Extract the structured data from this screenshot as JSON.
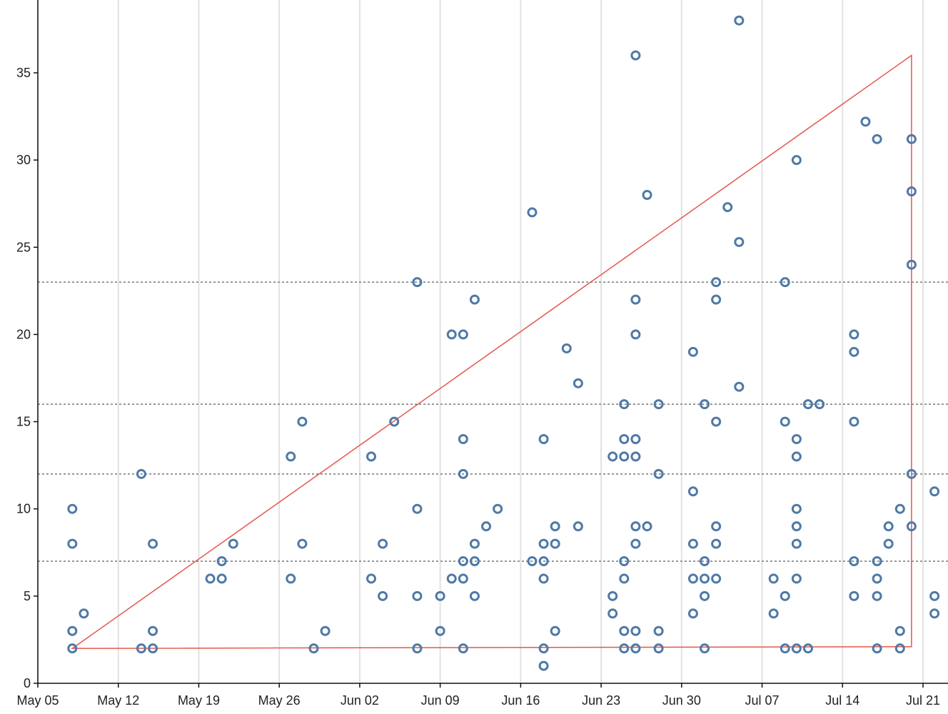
{
  "chart_data": {
    "type": "scatter",
    "title": "",
    "xlabel": "",
    "ylabel": "",
    "x_axis": {
      "scale": "time",
      "range": [
        "2024-05-05",
        "2024-07-22"
      ],
      "tick_values": [
        "2024-05-05",
        "2024-05-12",
        "2024-05-19",
        "2024-05-26",
        "2024-06-02",
        "2024-06-09",
        "2024-06-16",
        "2024-06-23",
        "2024-06-30",
        "2024-07-07",
        "2024-07-14",
        "2024-07-21"
      ],
      "tick_labels": [
        "May 05",
        "May 12",
        "May 19",
        "May 26",
        "Jun 02",
        "Jun 09",
        "Jun 16",
        "Jun 23",
        "Jun 30",
        "Jul 07",
        "Jul 14",
        "Jul 21"
      ]
    },
    "y_axis": {
      "range": [
        0,
        39
      ],
      "tick_values": [
        0,
        5,
        10,
        15,
        20,
        25,
        30,
        35
      ],
      "tick_labels": [
        "0",
        "5",
        "10",
        "15",
        "20",
        "25",
        "30",
        "35"
      ]
    },
    "vertical_grid": true,
    "horizontal_grid": false,
    "reference_lines": [
      7,
      12,
      16,
      23
    ],
    "colors": {
      "points": "#4e79a7",
      "polygon": "#e4574c",
      "reference_lines": "#777777",
      "grid": "#e2e2e2",
      "axis": "#111111"
    },
    "polygon": [
      {
        "x": "2024-05-08",
        "y": 2
      },
      {
        "x": "2024-07-20",
        "y": 36
      },
      {
        "x": "2024-07-20",
        "y": 2.1
      }
    ],
    "series": [
      {
        "points": [
          {
            "x": "2024-05-08",
            "y": 10
          },
          {
            "x": "2024-05-08",
            "y": 8
          },
          {
            "x": "2024-05-08",
            "y": 3
          },
          {
            "x": "2024-05-08",
            "y": 2
          },
          {
            "x": "2024-05-09",
            "y": 4
          },
          {
            "x": "2024-05-14",
            "y": 12
          },
          {
            "x": "2024-05-14",
            "y": 2
          },
          {
            "x": "2024-05-15",
            "y": 8
          },
          {
            "x": "2024-05-15",
            "y": 3
          },
          {
            "x": "2024-05-15",
            "y": 2
          },
          {
            "x": "2024-05-20",
            "y": 6
          },
          {
            "x": "2024-05-21",
            "y": 7
          },
          {
            "x": "2024-05-21",
            "y": 6
          },
          {
            "x": "2024-05-22",
            "y": 8
          },
          {
            "x": "2024-05-27",
            "y": 13
          },
          {
            "x": "2024-05-27",
            "y": 6
          },
          {
            "x": "2024-05-28",
            "y": 15
          },
          {
            "x": "2024-05-28",
            "y": 8
          },
          {
            "x": "2024-05-29",
            "y": 2
          },
          {
            "x": "2024-05-30",
            "y": 3
          },
          {
            "x": "2024-06-03",
            "y": 13
          },
          {
            "x": "2024-06-03",
            "y": 6
          },
          {
            "x": "2024-06-04",
            "y": 8
          },
          {
            "x": "2024-06-04",
            "y": 5
          },
          {
            "x": "2024-06-05",
            "y": 15
          },
          {
            "x": "2024-06-07",
            "y": 23
          },
          {
            "x": "2024-06-07",
            "y": 10
          },
          {
            "x": "2024-06-07",
            "y": 5
          },
          {
            "x": "2024-06-07",
            "y": 2
          },
          {
            "x": "2024-06-09",
            "y": 5
          },
          {
            "x": "2024-06-09",
            "y": 3
          },
          {
            "x": "2024-06-10",
            "y": 20
          },
          {
            "x": "2024-06-10",
            "y": 6
          },
          {
            "x": "2024-06-11",
            "y": 20
          },
          {
            "x": "2024-06-11",
            "y": 14
          },
          {
            "x": "2024-06-11",
            "y": 12
          },
          {
            "x": "2024-06-11",
            "y": 7
          },
          {
            "x": "2024-06-11",
            "y": 6
          },
          {
            "x": "2024-06-11",
            "y": 2
          },
          {
            "x": "2024-06-12",
            "y": 22
          },
          {
            "x": "2024-06-12",
            "y": 8
          },
          {
            "x": "2024-06-12",
            "y": 7
          },
          {
            "x": "2024-06-12",
            "y": 5
          },
          {
            "x": "2024-06-13",
            "y": 9
          },
          {
            "x": "2024-06-14",
            "y": 10
          },
          {
            "x": "2024-06-17",
            "y": 27
          },
          {
            "x": "2024-06-17",
            "y": 7
          },
          {
            "x": "2024-06-18",
            "y": 14
          },
          {
            "x": "2024-06-18",
            "y": 8
          },
          {
            "x": "2024-06-18",
            "y": 7
          },
          {
            "x": "2024-06-18",
            "y": 6
          },
          {
            "x": "2024-06-18",
            "y": 2
          },
          {
            "x": "2024-06-18",
            "y": 1
          },
          {
            "x": "2024-06-19",
            "y": 9
          },
          {
            "x": "2024-06-19",
            "y": 8
          },
          {
            "x": "2024-06-19",
            "y": 3
          },
          {
            "x": "2024-06-20",
            "y": 19.2
          },
          {
            "x": "2024-06-21",
            "y": 17.2
          },
          {
            "x": "2024-06-21",
            "y": 9
          },
          {
            "x": "2024-06-24",
            "y": 13
          },
          {
            "x": "2024-06-24",
            "y": 5
          },
          {
            "x": "2024-06-24",
            "y": 4
          },
          {
            "x": "2024-06-25",
            "y": 16
          },
          {
            "x": "2024-06-25",
            "y": 14
          },
          {
            "x": "2024-06-25",
            "y": 13
          },
          {
            "x": "2024-06-25",
            "y": 7
          },
          {
            "x": "2024-06-25",
            "y": 6
          },
          {
            "x": "2024-06-25",
            "y": 3
          },
          {
            "x": "2024-06-25",
            "y": 2
          },
          {
            "x": "2024-06-26",
            "y": 36
          },
          {
            "x": "2024-06-26",
            "y": 22
          },
          {
            "x": "2024-06-26",
            "y": 20
          },
          {
            "x": "2024-06-26",
            "y": 14
          },
          {
            "x": "2024-06-26",
            "y": 13
          },
          {
            "x": "2024-06-26",
            "y": 9
          },
          {
            "x": "2024-06-26",
            "y": 8
          },
          {
            "x": "2024-06-26",
            "y": 3
          },
          {
            "x": "2024-06-26",
            "y": 2
          },
          {
            "x": "2024-06-27",
            "y": 28
          },
          {
            "x": "2024-06-27",
            "y": 9
          },
          {
            "x": "2024-06-28",
            "y": 16
          },
          {
            "x": "2024-06-28",
            "y": 12
          },
          {
            "x": "2024-06-28",
            "y": 3
          },
          {
            "x": "2024-06-28",
            "y": 2
          },
          {
            "x": "2024-07-01",
            "y": 19
          },
          {
            "x": "2024-07-01",
            "y": 11
          },
          {
            "x": "2024-07-01",
            "y": 8
          },
          {
            "x": "2024-07-01",
            "y": 6
          },
          {
            "x": "2024-07-01",
            "y": 4
          },
          {
            "x": "2024-07-02",
            "y": 16
          },
          {
            "x": "2024-07-02",
            "y": 7
          },
          {
            "x": "2024-07-02",
            "y": 6
          },
          {
            "x": "2024-07-02",
            "y": 5
          },
          {
            "x": "2024-07-02",
            "y": 2
          },
          {
            "x": "2024-07-03",
            "y": 23
          },
          {
            "x": "2024-07-03",
            "y": 22
          },
          {
            "x": "2024-07-03",
            "y": 15
          },
          {
            "x": "2024-07-03",
            "y": 9
          },
          {
            "x": "2024-07-03",
            "y": 8
          },
          {
            "x": "2024-07-03",
            "y": 6
          },
          {
            "x": "2024-07-04",
            "y": 27.3
          },
          {
            "x": "2024-07-05",
            "y": 38
          },
          {
            "x": "2024-07-05",
            "y": 25.3
          },
          {
            "x": "2024-07-05",
            "y": 17
          },
          {
            "x": "2024-07-08",
            "y": 6
          },
          {
            "x": "2024-07-08",
            "y": 4
          },
          {
            "x": "2024-07-09",
            "y": 23
          },
          {
            "x": "2024-07-09",
            "y": 15
          },
          {
            "x": "2024-07-09",
            "y": 5
          },
          {
            "x": "2024-07-09",
            "y": 2
          },
          {
            "x": "2024-07-10",
            "y": 30
          },
          {
            "x": "2024-07-10",
            "y": 14
          },
          {
            "x": "2024-07-10",
            "y": 13
          },
          {
            "x": "2024-07-10",
            "y": 10
          },
          {
            "x": "2024-07-10",
            "y": 9
          },
          {
            "x": "2024-07-10",
            "y": 8
          },
          {
            "x": "2024-07-10",
            "y": 6
          },
          {
            "x": "2024-07-10",
            "y": 2
          },
          {
            "x": "2024-07-11",
            "y": 16
          },
          {
            "x": "2024-07-11",
            "y": 2
          },
          {
            "x": "2024-07-12",
            "y": 16
          },
          {
            "x": "2024-07-15",
            "y": 20
          },
          {
            "x": "2024-07-15",
            "y": 19
          },
          {
            "x": "2024-07-15",
            "y": 15
          },
          {
            "x": "2024-07-15",
            "y": 7
          },
          {
            "x": "2024-07-15",
            "y": 5
          },
          {
            "x": "2024-07-16",
            "y": 32.2
          },
          {
            "x": "2024-07-17",
            "y": 31.2
          },
          {
            "x": "2024-07-17",
            "y": 7
          },
          {
            "x": "2024-07-17",
            "y": 6
          },
          {
            "x": "2024-07-17",
            "y": 5
          },
          {
            "x": "2024-07-17",
            "y": 2
          },
          {
            "x": "2024-07-18",
            "y": 9
          },
          {
            "x": "2024-07-18",
            "y": 8
          },
          {
            "x": "2024-07-19",
            "y": 10
          },
          {
            "x": "2024-07-19",
            "y": 3
          },
          {
            "x": "2024-07-19",
            "y": 2
          },
          {
            "x": "2024-07-20",
            "y": 31.2
          },
          {
            "x": "2024-07-20",
            "y": 28.2
          },
          {
            "x": "2024-07-20",
            "y": 24
          },
          {
            "x": "2024-07-20",
            "y": 12
          },
          {
            "x": "2024-07-20",
            "y": 9
          },
          {
            "x": "2024-07-22",
            "y": 11
          },
          {
            "x": "2024-07-22",
            "y": 5
          },
          {
            "x": "2024-07-22",
            "y": 4
          }
        ]
      }
    ]
  }
}
